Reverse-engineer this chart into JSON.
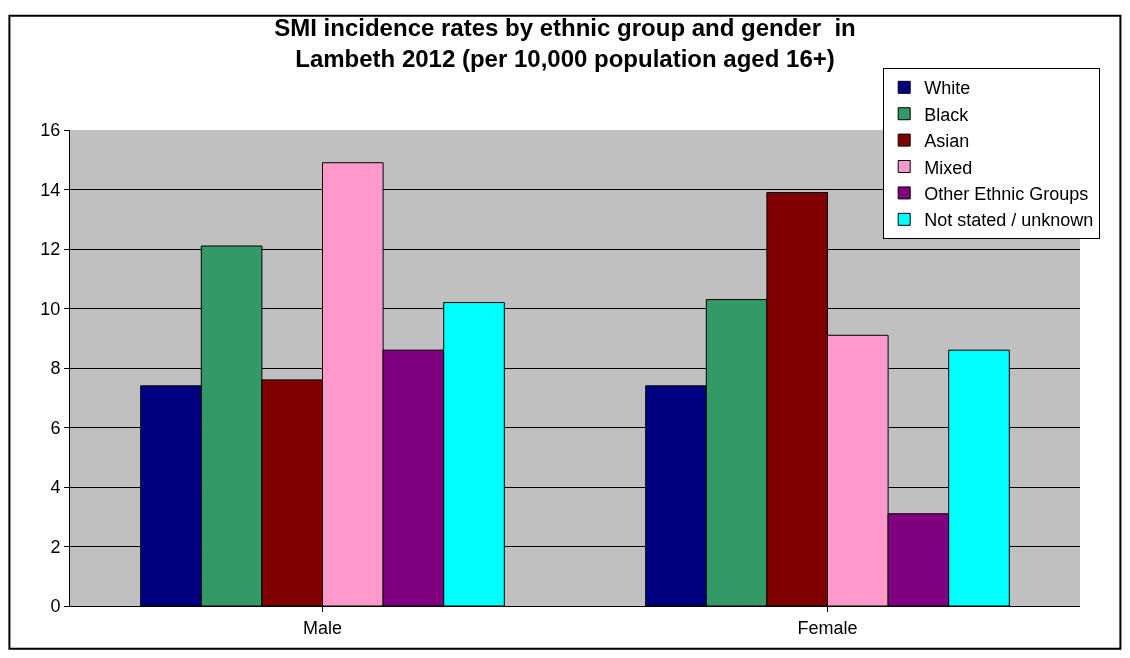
{
  "chart_data": {
    "type": "bar",
    "title": "SMI incidence rates by ethnic group and gender  in\nLambeth 2012 (per 10,000 population aged 16+)",
    "categories": [
      "Male",
      "Female"
    ],
    "series": [
      {
        "name": "White",
        "color": "#000080",
        "values": [
          7.4,
          7.4
        ]
      },
      {
        "name": "Black",
        "color": "#339966",
        "values": [
          12.1,
          10.3
        ]
      },
      {
        "name": "Asian",
        "color": "#800000",
        "values": [
          7.6,
          13.9
        ]
      },
      {
        "name": "Mixed",
        "color": "#ff99cc",
        "values": [
          14.9,
          9.1
        ]
      },
      {
        "name": "Other Ethnic Groups",
        "color": "#800080",
        "values": [
          8.6,
          3.1
        ]
      },
      {
        "name": "Not stated / unknown",
        "color": "#00ffff",
        "values": [
          10.2,
          8.6
        ]
      }
    ],
    "ylim": [
      0,
      16
    ],
    "yticks": [
      0,
      2,
      4,
      6,
      8,
      10,
      12,
      14,
      16
    ],
    "grid": "y",
    "legend": "top right"
  }
}
